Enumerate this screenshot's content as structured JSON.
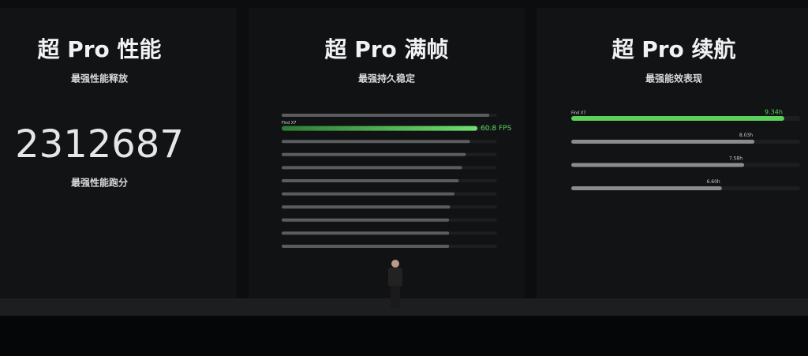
{
  "left": {
    "title": "超 Pro 性能",
    "subtitle": "最强性能释放",
    "score": "2312687",
    "caption": "最强性能跑分"
  },
  "chart_data": [
    {
      "type": "hbar",
      "title": "超 Pro 满帧",
      "subtitle": "最强持久稳定",
      "categories": [
        null,
        "Find X7",
        null,
        null,
        null,
        null,
        null,
        null,
        null,
        null,
        null
      ],
      "values": [
        64.5,
        60.8,
        58.5,
        57.2,
        56.0,
        55.0,
        53.7,
        52.3,
        52.0,
        52.0,
        52.0
      ],
      "value_labels": [
        null,
        "60.8 FPS",
        null,
        null,
        null,
        null,
        null,
        null,
        null,
        null,
        null
      ],
      "highlight_color": "#5ccf5c",
      "color": "#5a5c5e"
    },
    {
      "type": "hbar",
      "title": "超 Pro 续航",
      "subtitle": "最强能效表现",
      "categories": [
        "Find X7",
        null,
        null,
        null
      ],
      "values": [
        9.34,
        8.03,
        7.58,
        6.6
      ],
      "value_labels": [
        "9.34h",
        "8.03h",
        "7.58h",
        "6.60h"
      ],
      "highlight_color": "#5ccf5c",
      "color": "#8a8c8e"
    }
  ]
}
